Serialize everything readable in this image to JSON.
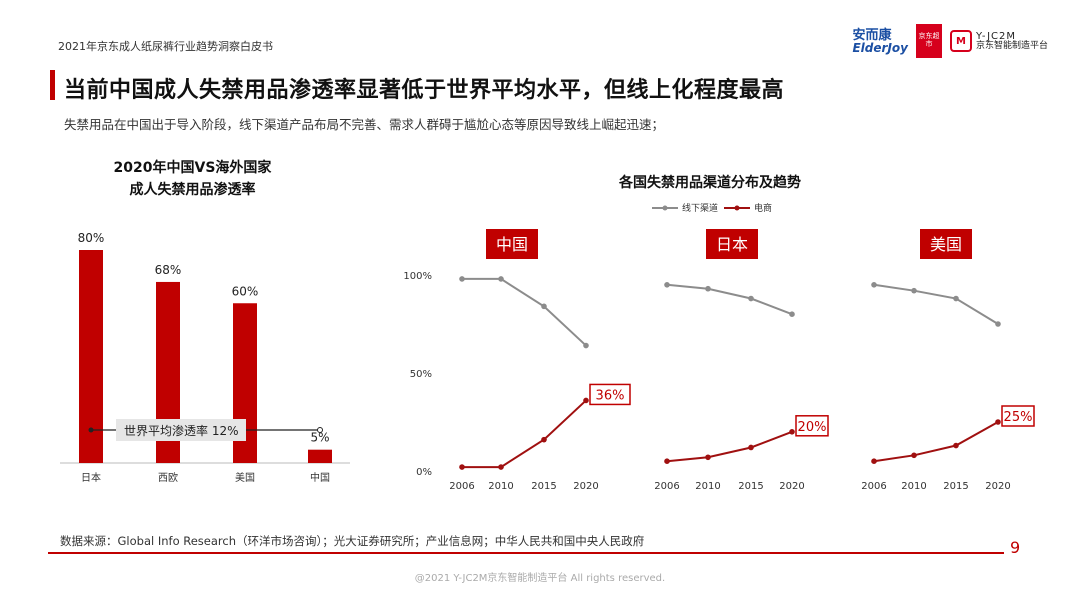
{
  "header": {
    "report_title": "2021年京东成人纸尿裤行业趋势洞察白皮书",
    "logo_anerkang_cn": "安而康",
    "logo_anerkang_en": "ElderJoy",
    "logo_jd": "京东超市",
    "logo_yjc2m_en": "Y-JC2M",
    "logo_yjc2m_cn": "京东智能制造平台"
  },
  "headline": "当前中国成人失禁用品渗透率显著低于世界平均水平，但线上化程度最高",
  "subline": "失禁用品在中国出于导入阶段，线下渠道产品布局不完善、需求人群碍于尴尬心态等原因导致线上崛起迅速；",
  "colors": {
    "accent": "#c00000",
    "bar": "#c00000",
    "offline": "#8c8c8c",
    "online": "#a01010"
  },
  "chart_data": [
    {
      "type": "bar",
      "title": "2020年中国VS海外国家成人失禁用品渗透率",
      "title_lines": [
        "2020年中国VS海外国家",
        "成人失禁用品渗透率"
      ],
      "categories": [
        "日本",
        "西欧",
        "美国",
        "中国"
      ],
      "values": [
        80,
        68,
        60,
        5
      ],
      "value_labels": [
        "80%",
        "68%",
        "60%",
        "5%"
      ],
      "ylim": [
        0,
        100
      ],
      "reference_line": {
        "label": "世界平均渗透率  12%",
        "value": 12
      }
    },
    {
      "type": "line",
      "title": "各国失禁用品渠道分布及趋势",
      "x": [
        "2006",
        "2010",
        "2015",
        "2020"
      ],
      "ylim": [
        0,
        100
      ],
      "y_ticks": [
        "0%",
        "50%",
        "100%"
      ],
      "legend": [
        "线下渠道",
        "电商"
      ],
      "panels": [
        {
          "country": "中国",
          "series": [
            {
              "name": "线下渠道",
              "values": [
                98,
                98,
                84,
                64
              ]
            },
            {
              "name": "电商",
              "values": [
                2,
                2,
                16,
                36
              ]
            }
          ],
          "end_label": "36%"
        },
        {
          "country": "日本",
          "series": [
            {
              "name": "线下渠道",
              "values": [
                95,
                93,
                88,
                80
              ]
            },
            {
              "name": "电商",
              "values": [
                5,
                7,
                12,
                20
              ]
            }
          ],
          "end_label": "20%"
        },
        {
          "country": "美国",
          "series": [
            {
              "name": "线下渠道",
              "values": [
                95,
                92,
                88,
                75
              ]
            },
            {
              "name": "电商",
              "values": [
                5,
                8,
                13,
                25
              ]
            }
          ],
          "end_label": "25%"
        }
      ]
    }
  ],
  "footer": {
    "source": "数据来源：Global Info Research（环洋市场咨询）；光大证券研究所；产业信息网；中华人民共和国中央人民政府",
    "page_number": "9",
    "copyright": "@2021 Y-JC2M京东智能制造平台  All rights reserved."
  }
}
